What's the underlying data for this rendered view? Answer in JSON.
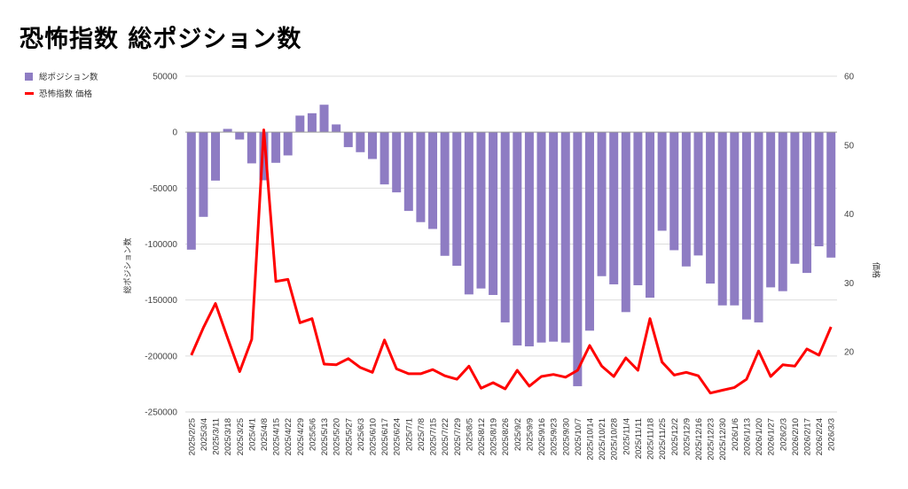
{
  "title": "恐怖指数 総ポジション数",
  "chart_data": {
    "type": "bar+line",
    "title": "恐怖指数 総ポジション数",
    "ylabel_left": "総ポジション数",
    "ylabel_right": "価格",
    "ylim_left": [
      -250000,
      50000
    ],
    "yticks_left": [
      50000,
      0,
      -50000,
      -100000,
      -150000,
      -200000,
      -250000
    ],
    "ylim_right": [
      11.3,
      60
    ],
    "yticks_right": [
      60,
      50,
      40,
      30,
      20
    ],
    "grid": true,
    "legend_position": "top-left",
    "categories": [
      "2025/2/25",
      "2025/3/4",
      "2025/3/11",
      "2025/3/18",
      "2025/3/25",
      "2025/4/1",
      "2025/4/8",
      "2025/4/15",
      "2025/4/22",
      "2025/4/29",
      "2025/5/6",
      "2025/5/13",
      "2025/5/20",
      "2025/5/27",
      "2025/6/3",
      "2025/6/10",
      "2025/6/17",
      "2025/6/24",
      "2025/7/1",
      "2025/7/8",
      "2025/7/15",
      "2025/7/22",
      "2025/7/29",
      "2025/8/5",
      "2025/8/12",
      "2025/8/19",
      "2025/8/26",
      "2025/9/2",
      "2025/9/9",
      "2025/9/16",
      "2025/9/23",
      "2025/9/30",
      "2025/10/7",
      "2025/10/14",
      "2025/10/21",
      "2025/10/28",
      "2025/11/4",
      "2025/11/11",
      "2025/11/18",
      "2025/11/25",
      "2025/12/2",
      "2025/12/9",
      "2025/12/16",
      "2025/12/23",
      "2025/12/30",
      "2026/1/6",
      "2026/1/13",
      "2026/1/20",
      "2026/1/27",
      "2026/2/3",
      "2026/2/10",
      "2026/2/17",
      "2026/2/24",
      "2026/3/3"
    ],
    "series": [
      {
        "name": "総ポジション数",
        "type": "bar",
        "axis": "left",
        "color": "#8e7cc3",
        "values": [
          -105000,
          -75700,
          -43300,
          2900,
          -6600,
          -27900,
          -43000,
          -27400,
          -20800,
          14800,
          16900,
          24500,
          6900,
          -13400,
          -17900,
          -24000,
          -46700,
          -53800,
          -70400,
          -80400,
          -86500,
          -110500,
          -119400,
          -145000,
          -139700,
          -145500,
          -170000,
          -190600,
          -191400,
          -188000,
          -187200,
          -188000,
          -227000,
          -177400,
          -128700,
          -136000,
          -160800,
          -136800,
          -147900,
          -88100,
          -105500,
          -120000,
          -110200,
          -135300,
          -154800,
          -154800,
          -167400,
          -170000,
          -138700,
          -142100,
          -117600,
          -125800,
          -102000,
          -112100
        ]
      },
      {
        "name": "恐怖指数 価格",
        "type": "line",
        "axis": "right",
        "color": "#ff0000",
        "values": [
          19.5,
          23.5,
          27.0,
          22.0,
          17.1,
          21.8,
          52.2,
          30.2,
          30.5,
          24.2,
          24.8,
          18.2,
          18.1,
          19.0,
          17.7,
          17.0,
          21.7,
          17.5,
          16.8,
          16.8,
          17.4,
          16.5,
          16.0,
          17.9,
          14.7,
          15.5,
          14.6,
          17.3,
          15.0,
          16.4,
          16.7,
          16.3,
          17.3,
          20.9,
          17.9,
          16.4,
          19.1,
          17.3,
          24.8,
          18.5,
          16.6,
          17.0,
          16.5,
          14.0,
          14.4,
          14.8,
          16.0,
          20.1,
          16.4,
          18.1,
          17.9,
          20.4,
          19.5,
          23.6
        ]
      }
    ]
  }
}
